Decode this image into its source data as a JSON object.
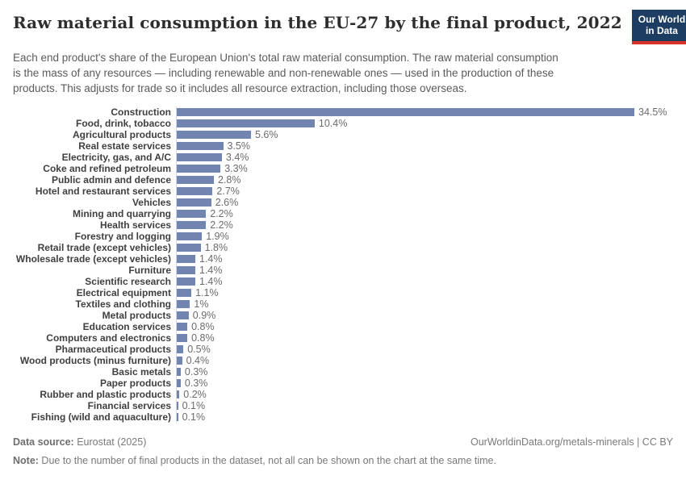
{
  "header": {
    "title": "Raw material consumption in the EU-27 by the final product, 2022",
    "subtitle": "Each end product's share of the European Union's total raw material consumption. The raw material consumption is the mass of any resources — including renewable and non-renewable ones — used in the production of these products. This adjusts for trade so it includes all resource extraction, including those overseas.",
    "logo": {
      "line1": "Our World",
      "line2": "in Data"
    }
  },
  "chart_data": {
    "type": "bar",
    "orientation": "horizontal",
    "title": "Raw material consumption in the EU-27 by the final product, 2022",
    "xlabel": "",
    "ylabel": "",
    "unit": "%",
    "xlim": [
      0,
      36
    ],
    "grid": false,
    "legend": "none",
    "bar_color": "#7285b0",
    "axis_line_color": "#d6d9de",
    "categories": [
      "Construction",
      "Food, drink, tobacco",
      "Agricultural products",
      "Real estate services",
      "Electricity, gas, and A/C",
      "Coke and refined petroleum",
      "Public admin and defence",
      "Hotel and restaurant services",
      "Vehicles",
      "Mining and quarrying",
      "Health services",
      "Forestry and logging",
      "Retail trade (except vehicles)",
      "Wholesale trade (except vehicles)",
      "Furniture",
      "Scientific research",
      "Electrical equipment",
      "Textiles and clothing",
      "Metal products",
      "Education services",
      "Computers and electronics",
      "Pharmaceutical products",
      "Wood products (minus furniture)",
      "Basic metals",
      "Paper products",
      "Rubber and plastic products",
      "Financial services",
      "Fishing (wild and aquaculture)"
    ],
    "values": [
      34.5,
      10.4,
      5.6,
      3.5,
      3.4,
      3.3,
      2.8,
      2.7,
      2.6,
      2.2,
      2.2,
      1.9,
      1.8,
      1.4,
      1.4,
      1.4,
      1.1,
      1,
      0.9,
      0.8,
      0.8,
      0.5,
      0.4,
      0.3,
      0.3,
      0.2,
      0.1,
      0.1
    ],
    "value_labels": [
      "34.5%",
      "10.4%",
      "5.6%",
      "3.5%",
      "3.4%",
      "3.3%",
      "2.8%",
      "2.7%",
      "2.6%",
      "2.2%",
      "2.2%",
      "1.9%",
      "1.8%",
      "1.4%",
      "1.4%",
      "1.4%",
      "1.1%",
      "1%",
      "0.9%",
      "0.8%",
      "0.8%",
      "0.5%",
      "0.4%",
      "0.3%",
      "0.3%",
      "0.2%",
      "0.1%",
      "0.1%"
    ]
  },
  "footer": {
    "source_label": "Data source:",
    "source_value": " Eurostat (2025)",
    "attribution": "OurWorldinData.org/metals-minerals | CC BY",
    "note_label": "Note:",
    "note_value": " Due to the number of final products in the dataset, not all can be shown on the chart at the same time."
  }
}
